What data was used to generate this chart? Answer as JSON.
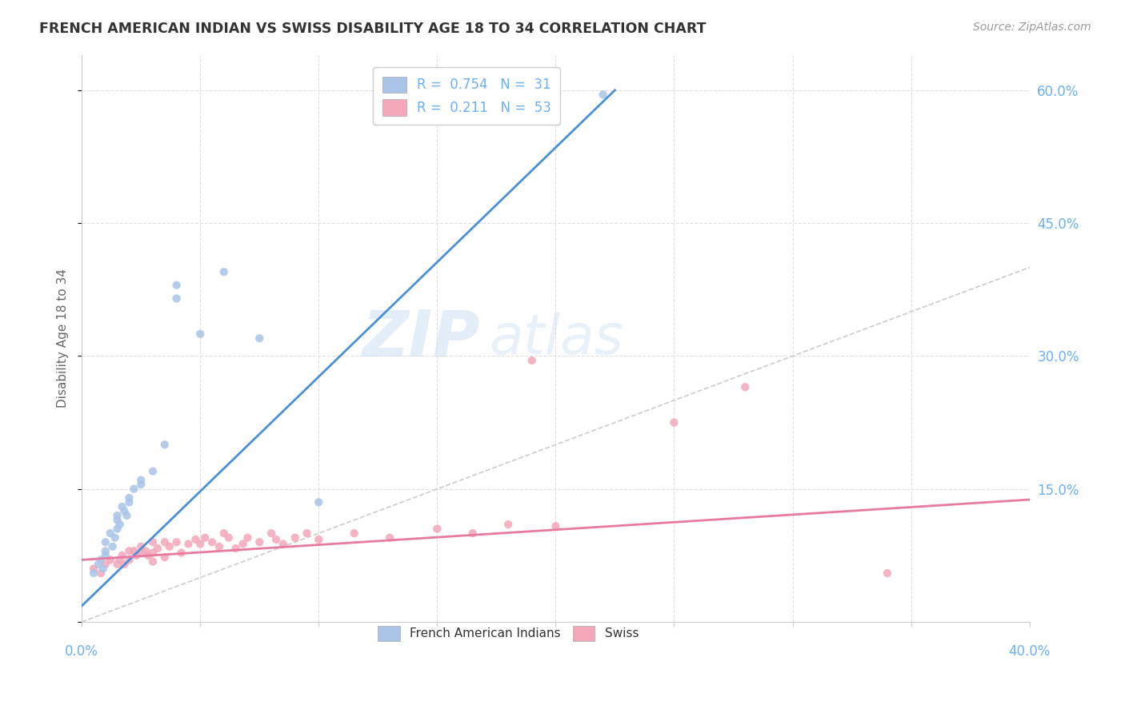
{
  "title": "FRENCH AMERICAN INDIAN VS SWISS DISABILITY AGE 18 TO 34 CORRELATION CHART",
  "source": "Source: ZipAtlas.com",
  "ylabel": "Disability Age 18 to 34",
  "xlim": [
    0.0,
    0.4
  ],
  "ylim": [
    0.0,
    0.64
  ],
  "watermark_zip": "ZIP",
  "watermark_atlas": "atlas",
  "legend_entry1": {
    "label": "French American Indians",
    "R": "0.754",
    "N": "31",
    "color": "#aac4e8"
  },
  "legend_entry2": {
    "label": "Swiss",
    "R": "0.211",
    "N": "53",
    "color": "#f4a7b9"
  },
  "scatter_blue": [
    [
      0.005,
      0.055
    ],
    [
      0.007,
      0.065
    ],
    [
      0.008,
      0.07
    ],
    [
      0.009,
      0.06
    ],
    [
      0.01,
      0.08
    ],
    [
      0.01,
      0.075
    ],
    [
      0.01,
      0.09
    ],
    [
      0.012,
      0.1
    ],
    [
      0.013,
      0.085
    ],
    [
      0.014,
      0.095
    ],
    [
      0.015,
      0.105
    ],
    [
      0.015,
      0.115
    ],
    [
      0.015,
      0.12
    ],
    [
      0.016,
      0.11
    ],
    [
      0.017,
      0.13
    ],
    [
      0.018,
      0.125
    ],
    [
      0.019,
      0.12
    ],
    [
      0.02,
      0.135
    ],
    [
      0.02,
      0.14
    ],
    [
      0.022,
      0.15
    ],
    [
      0.025,
      0.155
    ],
    [
      0.025,
      0.16
    ],
    [
      0.03,
      0.17
    ],
    [
      0.035,
      0.2
    ],
    [
      0.04,
      0.365
    ],
    [
      0.04,
      0.38
    ],
    [
      0.05,
      0.325
    ],
    [
      0.06,
      0.395
    ],
    [
      0.075,
      0.32
    ],
    [
      0.1,
      0.135
    ],
    [
      0.22,
      0.595
    ]
  ],
  "scatter_pink": [
    [
      0.005,
      0.06
    ],
    [
      0.008,
      0.055
    ],
    [
      0.01,
      0.065
    ],
    [
      0.012,
      0.07
    ],
    [
      0.015,
      0.065
    ],
    [
      0.016,
      0.07
    ],
    [
      0.017,
      0.075
    ],
    [
      0.018,
      0.065
    ],
    [
      0.02,
      0.08
    ],
    [
      0.02,
      0.07
    ],
    [
      0.022,
      0.08
    ],
    [
      0.023,
      0.075
    ],
    [
      0.025,
      0.085
    ],
    [
      0.025,
      0.078
    ],
    [
      0.027,
      0.08
    ],
    [
      0.028,
      0.075
    ],
    [
      0.03,
      0.09
    ],
    [
      0.03,
      0.078
    ],
    [
      0.03,
      0.068
    ],
    [
      0.032,
      0.083
    ],
    [
      0.035,
      0.09
    ],
    [
      0.035,
      0.073
    ],
    [
      0.037,
      0.085
    ],
    [
      0.04,
      0.09
    ],
    [
      0.042,
      0.078
    ],
    [
      0.045,
      0.088
    ],
    [
      0.048,
      0.093
    ],
    [
      0.05,
      0.088
    ],
    [
      0.052,
      0.095
    ],
    [
      0.055,
      0.09
    ],
    [
      0.058,
      0.085
    ],
    [
      0.06,
      0.1
    ],
    [
      0.062,
      0.095
    ],
    [
      0.065,
      0.083
    ],
    [
      0.068,
      0.088
    ],
    [
      0.07,
      0.095
    ],
    [
      0.075,
      0.09
    ],
    [
      0.08,
      0.1
    ],
    [
      0.082,
      0.093
    ],
    [
      0.085,
      0.088
    ],
    [
      0.09,
      0.095
    ],
    [
      0.095,
      0.1
    ],
    [
      0.1,
      0.093
    ],
    [
      0.115,
      0.1
    ],
    [
      0.13,
      0.095
    ],
    [
      0.15,
      0.105
    ],
    [
      0.165,
      0.1
    ],
    [
      0.18,
      0.11
    ],
    [
      0.2,
      0.108
    ],
    [
      0.19,
      0.295
    ],
    [
      0.25,
      0.225
    ],
    [
      0.28,
      0.265
    ],
    [
      0.34,
      0.055
    ]
  ],
  "blue_line_x": [
    0.0,
    0.225
  ],
  "blue_line_y": [
    0.018,
    0.6
  ],
  "pink_line_x": [
    0.0,
    0.4
  ],
  "pink_line_y": [
    0.07,
    0.138
  ],
  "diag_line_color": "#cccccc",
  "grid_color": "#e0e0e0",
  "bg_color": "#ffffff",
  "title_color": "#333333",
  "right_axis_color": "#6ab0f5",
  "scatter_blue_color": "#aac4e8",
  "scatter_pink_color": "#f4a7b9",
  "blue_line_color": "#4a90d9",
  "pink_line_color": "#e87aa0",
  "scatter_alpha": 0.85,
  "scatter_size": 55
}
